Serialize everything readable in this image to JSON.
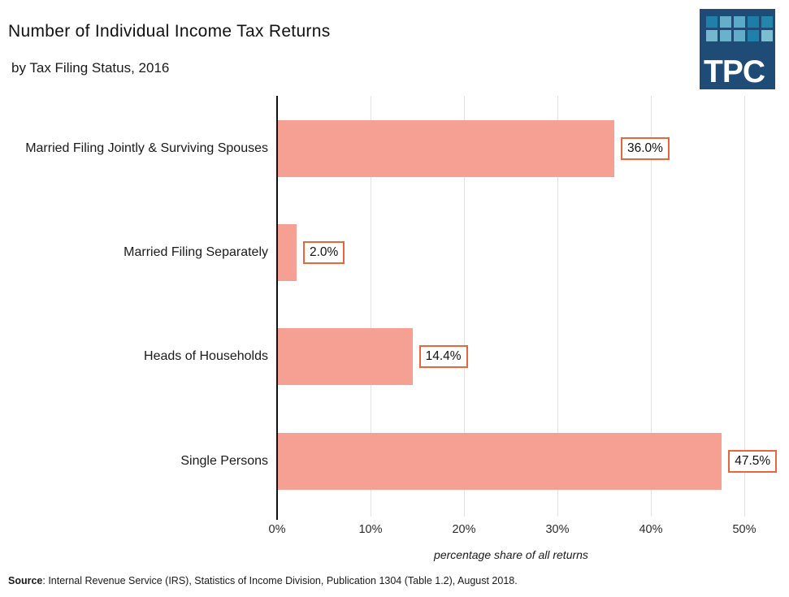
{
  "header": {
    "title": "Number of Individual Income Tax Returns",
    "subtitle": "by Tax Filing Status, 2016"
  },
  "logo": {
    "text": "TPC",
    "background": "#1e4c77",
    "tiles": [
      "#2080a8",
      "#64aec9",
      "#5baac7",
      "#1e7da6",
      "#2486ab",
      "#74b7ce",
      "#6ab2cb",
      "#62acc8",
      "#1f81a9",
      "#7cbdd2"
    ]
  },
  "chart_data": {
    "type": "bar",
    "orientation": "horizontal",
    "title": "Number of Individual Income Tax Returns",
    "subtitle": "by Tax Filing Status, 2016",
    "categories": [
      "Married Filing Jointly & Surviving Spouses",
      "Married Filing Separately",
      "Heads of Households",
      "Single Persons"
    ],
    "values": [
      36.0,
      2.0,
      14.4,
      47.5
    ],
    "value_labels": [
      "36.0%",
      "2.0%",
      "14.4%",
      "47.5%"
    ],
    "xlabel": "percentage share of all returns",
    "xticks": [
      "0%",
      "10%",
      "20%",
      "30%",
      "40%",
      "50%"
    ],
    "xtick_values": [
      0,
      10,
      20,
      30,
      40,
      50
    ],
    "xlim": [
      0,
      54
    ],
    "grid": true,
    "legend": "none",
    "bar_color": "#f5a092",
    "value_box_border_color": "#e8663e",
    "gridline_color": "#e3e3e3",
    "axis_color": "#111111"
  },
  "footer": {
    "source_label": "Source",
    "source_text": ": Internal Revenue Service (IRS), Statistics of Income Division, Publication 1304 (Table 1.2), August 2018."
  }
}
